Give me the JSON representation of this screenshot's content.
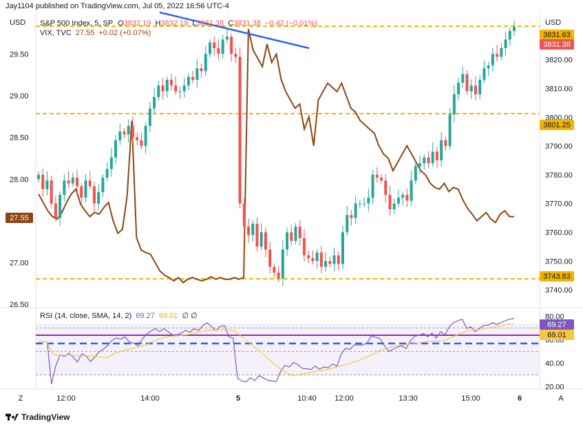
{
  "publisher": "Jay1104 published on TradingView.com, Jul 05, 2022 16:56 UTC-4",
  "currency": "USD",
  "logo_text": "TradingView",
  "main_legend": {
    "symbol": "S&P 500 Index, 5, SP",
    "o_label": "O",
    "o_value": "3832.19",
    "h_label": "H",
    "h_value": "3832.19",
    "l_label": "L",
    "l_value": "3831.38",
    "c_label": "C",
    "c_value": "3831.38",
    "change": "−0.42 (−0.01%)"
  },
  "vix_legend": {
    "symbol": "VIX, TVC",
    "value": "27.55",
    "change": "+0.02 (+0.07%)"
  },
  "rsi_legend": {
    "label": "RSI (14, close, SMA, 14, 2)",
    "rsi": "69.27",
    "sma": "69.01",
    "extra": "∅ ∅"
  },
  "corner_left": "Z",
  "corner_right": "A",
  "colors": {
    "up": "#26a69a",
    "down": "#ef5350",
    "vix": "#8b4513",
    "level": "#f0b400",
    "trend": "#2962ff",
    "rsi": "#7e57c2",
    "rsi_sma": "#f5c842",
    "purple_line": "#9c27b0",
    "blue_dash": "#2962ff"
  },
  "chart_data": [
    {
      "type": "candlestick",
      "series": [
        {
          "name": "S&P 500 Index, 5, SP"
        }
      ],
      "ylim": [
        3735,
        3835
      ],
      "right_ticks": [
        "3820.00",
        "3810.00",
        "3800.00",
        "3790.00",
        "3780.00",
        "3770.00",
        "3760.00",
        "3750.00",
        "3740.00"
      ],
      "x_ticks": [
        "12:00",
        "14:00",
        "5",
        "10:40",
        "12:00",
        "13:30",
        "15:00",
        "6"
      ],
      "price_tags": [
        "3831.63",
        "3831.38",
        "3801.25",
        "3743.83"
      ],
      "horizontal_levels": [
        3831.63,
        3801.25,
        3743.83
      ],
      "closes": [
        3780,
        3775,
        3778,
        3770,
        3765,
        3773,
        3778,
        3777,
        3779,
        3776,
        3772,
        3778,
        3776,
        3770,
        3774,
        3779,
        3782,
        3786,
        3792,
        3795,
        3794,
        3797,
        3793,
        3792,
        3790,
        3797,
        3803,
        3807,
        3811,
        3809,
        3813,
        3811,
        3809,
        3809,
        3811,
        3814,
        3813,
        3817,
        3816,
        3822,
        3826,
        3824,
        3822,
        3827,
        3828,
        3822,
        3821,
        3770,
        3762,
        3759,
        3763,
        3755,
        3760,
        3754,
        3748,
        3746,
        3744,
        3754,
        3760,
        3757,
        3762,
        3758,
        3752,
        3751,
        3750,
        3753,
        3748,
        3750,
        3749,
        3752,
        3749,
        3760,
        3766,
        3765,
        3770,
        3770,
        3770,
        3772,
        3780,
        3779,
        3778,
        3773,
        3768,
        3770,
        3772,
        3773,
        3771,
        3778,
        3783,
        3784,
        3786,
        3784,
        3788,
        3785,
        3792,
        3790,
        3801,
        3808,
        3812,
        3815,
        3809,
        3811,
        3808,
        3813,
        3817,
        3818,
        3822,
        3821,
        3824,
        3827,
        3830,
        3831.38
      ]
    },
    {
      "type": "line",
      "series": [
        {
          "name": "VIX, TVC"
        }
      ],
      "ylim": [
        26.5,
        29.95
      ],
      "left_ticks": [
        "29.50",
        "29.00",
        "28.50",
        "28.00",
        "27.00",
        "26.50"
      ],
      "last_value_tag": "27.55",
      "values": [
        27.82,
        27.72,
        27.62,
        27.55,
        27.52,
        27.6,
        27.72,
        27.82,
        27.88,
        27.7,
        27.62,
        27.55,
        27.6,
        27.58,
        27.66,
        27.72,
        27.5,
        27.35,
        27.4,
        27.8,
        28.7,
        27.3,
        27.15,
        27.12,
        27.1,
        27.0,
        26.9,
        26.85,
        26.82,
        26.78,
        26.82,
        26.76,
        26.8,
        26.82,
        26.8,
        26.78,
        26.8,
        26.83,
        26.8,
        26.82,
        26.8,
        26.8,
        26.82,
        26.8,
        26.82,
        29.8,
        29.55,
        29.45,
        29.35,
        29.62,
        29.4,
        29.5,
        29.2,
        29.05,
        28.95,
        28.85,
        28.9,
        28.6,
        28.75,
        28.4,
        28.95,
        29.05,
        29.15,
        29.1,
        29.05,
        29.15,
        29.0,
        28.85,
        28.8,
        28.7,
        28.65,
        28.6,
        28.55,
        28.4,
        28.3,
        28.25,
        28.1,
        28.2,
        28.3,
        28.4,
        28.3,
        28.2,
        28.1,
        28.05,
        27.95,
        27.9,
        27.88,
        27.95,
        27.85,
        27.9,
        27.88,
        27.75,
        27.65,
        27.58,
        27.5,
        27.55,
        27.6,
        27.52,
        27.48,
        27.58,
        27.62,
        27.55,
        27.55
      ]
    },
    {
      "type": "line",
      "series": [
        {
          "name": "RSI"
        },
        {
          "name": "SMA"
        }
      ],
      "ylim": [
        18,
        85
      ],
      "ticks": [
        "80.00",
        "60.00",
        "40.00",
        "20.00"
      ],
      "levels": [
        70,
        50,
        30
      ],
      "value_tags": [
        "69.27",
        "69.01"
      ]
    }
  ]
}
